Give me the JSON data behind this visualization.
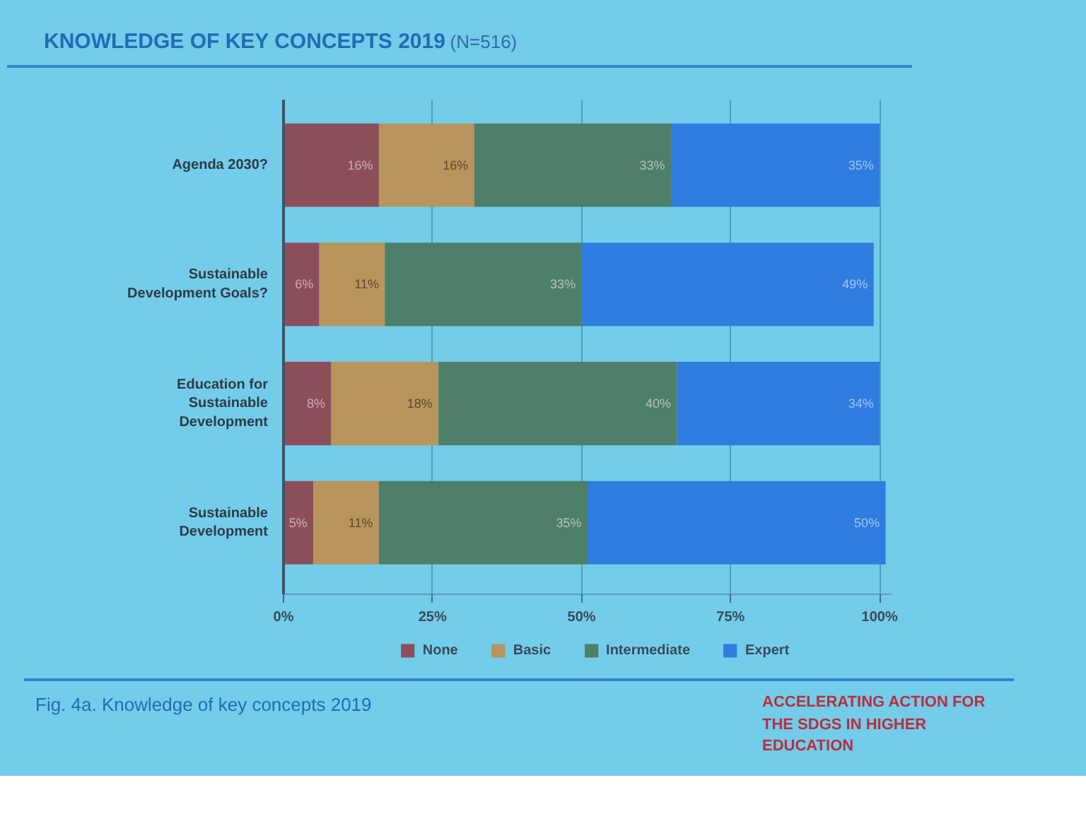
{
  "chart_data": {
    "type": "bar",
    "orientation": "horizontal",
    "stacked": true,
    "title": "KNOWLEDGE OF KEY CONCEPTS 2019",
    "subtitle": "(N=516)",
    "categories": [
      "Agenda 2030?",
      "Sustainable Development Goals?",
      "Education for Sustainable Development",
      "Sustainable Development"
    ],
    "series": [
      {
        "name": "None",
        "color": "#8c4f5a",
        "values": [
          16,
          6,
          8,
          5
        ],
        "value_labels": [
          "16%",
          "6%",
          "8%",
          "5%"
        ]
      },
      {
        "name": "Basic",
        "color": "#b8955c",
        "values": [
          16,
          11,
          18,
          11
        ],
        "value_labels": [
          "16%",
          "11%",
          "18%",
          "11%"
        ]
      },
      {
        "name": "Intermediate",
        "color": "#4e7f68",
        "values": [
          33,
          33,
          40,
          35
        ],
        "value_labels": [
          "33%",
          "33%",
          "40%",
          "35%"
        ]
      },
      {
        "name": "Expert",
        "color": "#2f7ddf",
        "values": [
          35,
          49,
          34,
          50
        ],
        "value_labels": [
          "35%",
          "49%",
          "34%",
          "50%"
        ]
      }
    ],
    "xlim": [
      0,
      102
    ],
    "xticks": [
      {
        "value": 0,
        "label": "0%"
      },
      {
        "value": 25,
        "label": "25%"
      },
      {
        "value": 50,
        "label": "50%"
      },
      {
        "value": 75,
        "label": "75%"
      },
      {
        "value": 100,
        "label": "100%"
      }
    ],
    "grid": "x",
    "legend": "bottom",
    "annotations": [
      "Fig. 4a. Knowledge of key concepts 2019",
      "ACCELERATING ACTION FOR THE SDGS IN HIGHER EDUCATION"
    ]
  }
}
